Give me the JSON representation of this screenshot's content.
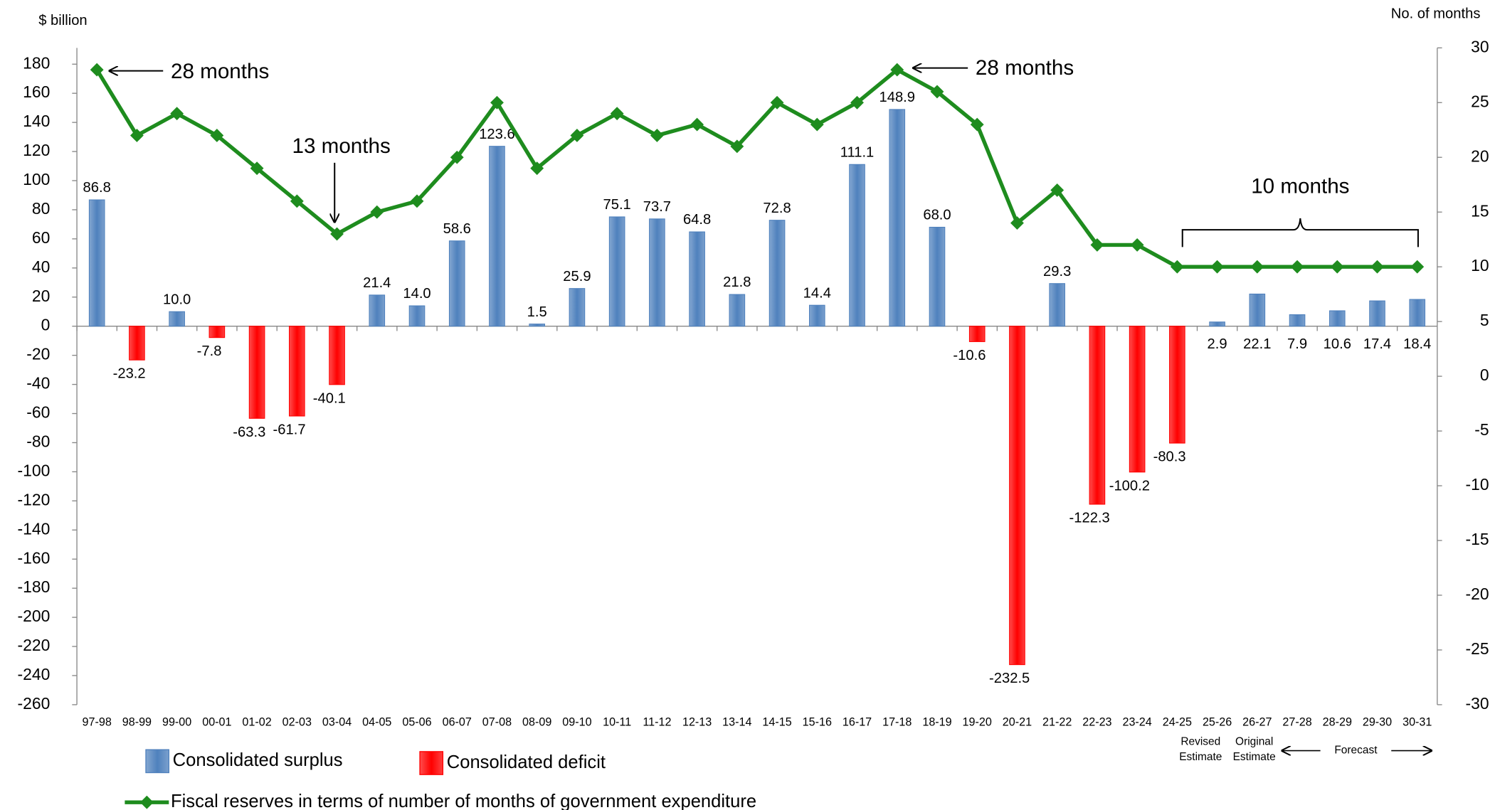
{
  "chart_data": {
    "type": "bar",
    "y_label": "$ billion",
    "y2_label": "No. of months",
    "categories": [
      "97-98",
      "98-99",
      "99-00",
      "00-01",
      "01-02",
      "02-03",
      "03-04",
      "04-05",
      "05-06",
      "06-07",
      "07-08",
      "08-09",
      "09-10",
      "10-11",
      "11-12",
      "12-13",
      "13-14",
      "14-15",
      "15-16",
      "16-17",
      "17-18",
      "18-19",
      "19-20",
      "20-21",
      "21-22",
      "22-23",
      "23-24",
      "24-25",
      "25-26",
      "26-27",
      "27-28",
      "28-29",
      "29-30",
      "30-31"
    ],
    "series": [
      {
        "name": "Consolidated surplus",
        "type": "bar",
        "color": "#4f81bd",
        "values": [
          86.8,
          null,
          10.0,
          null,
          null,
          null,
          null,
          21.4,
          14.0,
          58.6,
          123.6,
          1.5,
          25.9,
          75.1,
          73.7,
          64.8,
          21.8,
          72.8,
          14.4,
          111.1,
          148.9,
          68.0,
          null,
          null,
          29.3,
          null,
          null,
          null,
          2.9,
          22.1,
          7.9,
          10.6,
          17.4,
          18.4
        ],
        "value_labels": [
          "86.8",
          null,
          "10.0",
          null,
          null,
          null,
          null,
          "21.4",
          "14.0",
          "58.6",
          "123.6",
          "1.5",
          "25.9",
          "75.1",
          "73.7",
          "64.8",
          "21.8",
          "72.8",
          "14.4",
          "111.1",
          "148.9",
          "68.0",
          null,
          null,
          "29.3",
          null,
          null,
          null,
          "2.9",
          "22.1",
          "7.9",
          "10.6",
          "17.4",
          "18.4"
        ]
      },
      {
        "name": "Consolidated deficit",
        "type": "bar",
        "color": "#ff0000",
        "values": [
          null,
          -23.2,
          null,
          -7.8,
          -63.3,
          -61.7,
          -40.1,
          null,
          null,
          null,
          null,
          null,
          null,
          null,
          null,
          null,
          null,
          null,
          null,
          null,
          null,
          null,
          -10.6,
          -232.5,
          null,
          -122.3,
          -100.2,
          -80.3,
          null,
          null,
          null,
          null,
          null,
          null
        ],
        "value_labels": [
          null,
          "-23.2",
          null,
          "-7.8",
          "-63.3",
          "-61.7",
          "-40.1",
          null,
          null,
          null,
          null,
          null,
          null,
          null,
          null,
          null,
          null,
          null,
          null,
          null,
          null,
          null,
          "-10.6",
          "-232.5",
          null,
          "-122.3",
          "-100.2",
          "-80.3",
          null,
          null,
          null,
          null,
          null,
          null
        ]
      },
      {
        "name": "Fiscal reserves in terms of number of months of government expenditure",
        "type": "line",
        "axis": "y2",
        "color": "#1e8c1e",
        "values": [
          28,
          22,
          24,
          22,
          19,
          16,
          13,
          15,
          16,
          20,
          25,
          19,
          22,
          24,
          22,
          23,
          21,
          25,
          23,
          25,
          28,
          26,
          23,
          14,
          17,
          12,
          12,
          10,
          10,
          10,
          10,
          10,
          10,
          10
        ]
      }
    ],
    "ylim": [
      -260,
      191.2
    ],
    "yticks": [
      -260,
      -240,
      -220,
      -200,
      -180,
      -160,
      -140,
      -120,
      -100,
      -80,
      -60,
      -40,
      -20,
      0,
      20,
      40,
      60,
      80,
      100,
      120,
      140,
      160,
      180
    ],
    "y2lim": [
      -30,
      30
    ],
    "y2ticks": [
      -30,
      -25,
      -20,
      -15,
      -10,
      -5,
      0,
      5,
      10,
      15,
      20,
      25,
      30
    ],
    "annotations": [
      "28 months",
      "13 months",
      "28 months",
      "10 months",
      "Revised",
      "Estimate",
      "Original",
      "Estimate",
      "Forecast"
    ]
  }
}
